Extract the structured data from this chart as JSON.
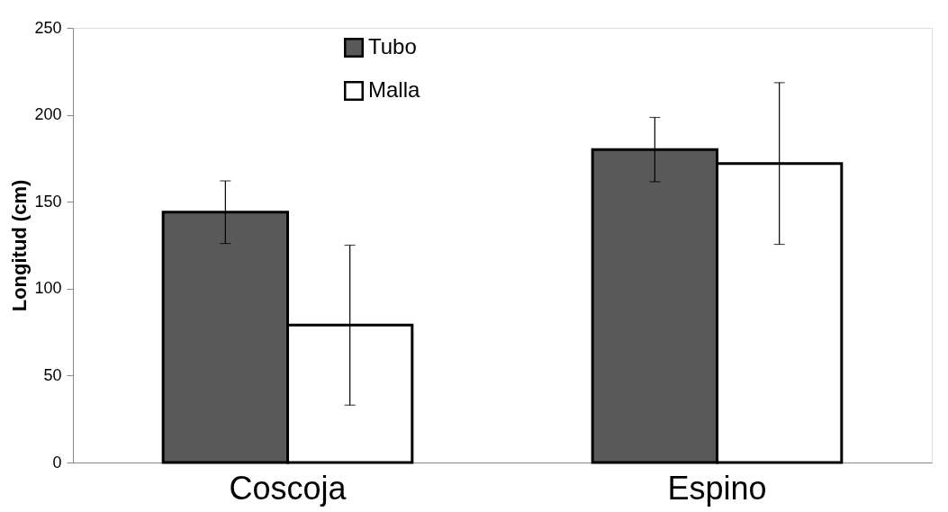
{
  "chart_data": {
    "type": "bar",
    "ylabel": "Longitud (cm)",
    "categories": [
      "Coscoja",
      "Espino"
    ],
    "series": [
      {
        "name": "Tubo",
        "color": "#595959",
        "values": [
          144,
          180
        ],
        "errors": [
          18,
          18.5
        ]
      },
      {
        "name": "Malla",
        "color": "#ffffff",
        "values": [
          79,
          172
        ],
        "errors": [
          46,
          46.5
        ]
      }
    ],
    "ylim": [
      0,
      250
    ],
    "yticks": [
      0,
      50,
      100,
      150,
      200,
      250
    ],
    "grid": false,
    "legend": "top left"
  }
}
